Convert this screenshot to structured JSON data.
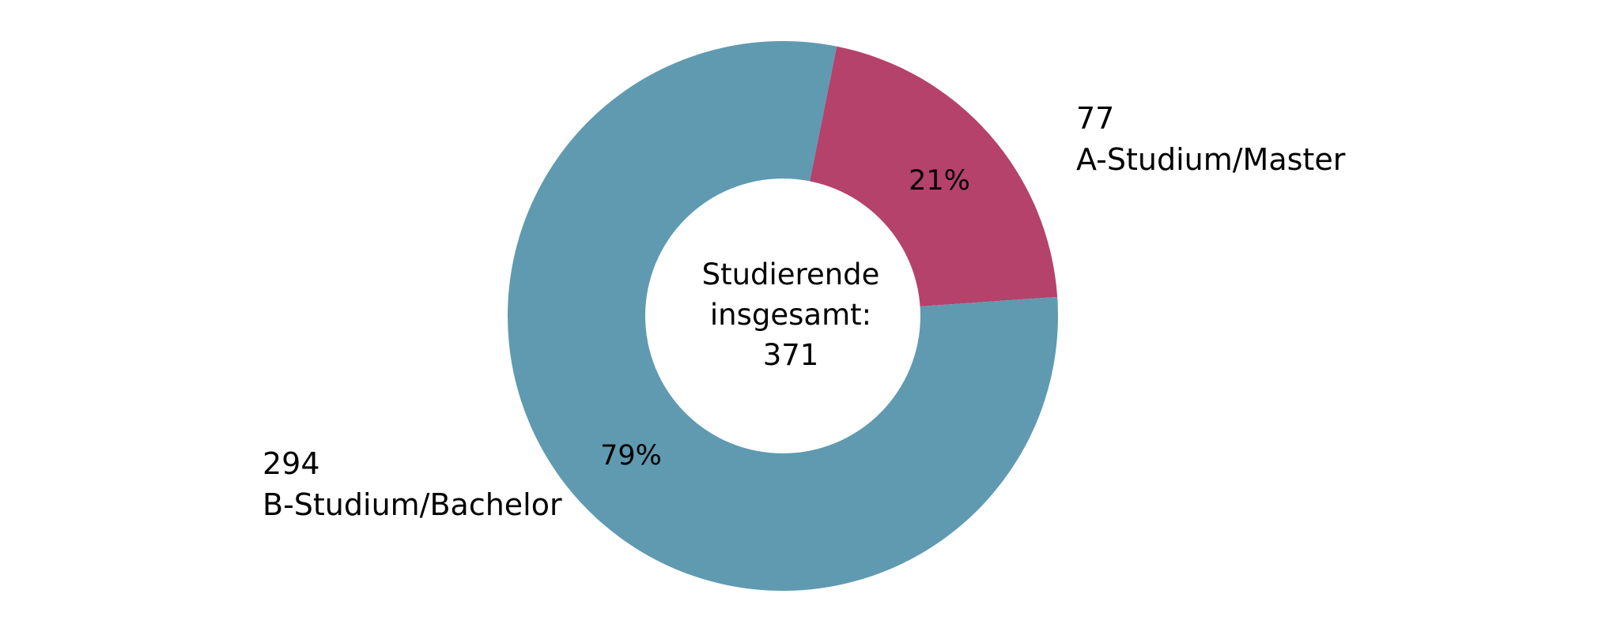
{
  "chart_data": {
    "type": "pie",
    "variant": "donut",
    "center_label": [
      "Studierende",
      "insgesamt:",
      "371"
    ],
    "slices": [
      {
        "label": "A-Studium/Master",
        "value": 77,
        "percent": "21%",
        "color": "#b5426b"
      },
      {
        "label": "B-Studium/Bachelor",
        "value": 294,
        "percent": "79%",
        "color": "#5f9ab0"
      }
    ],
    "total": 371,
    "legend": "none"
  }
}
